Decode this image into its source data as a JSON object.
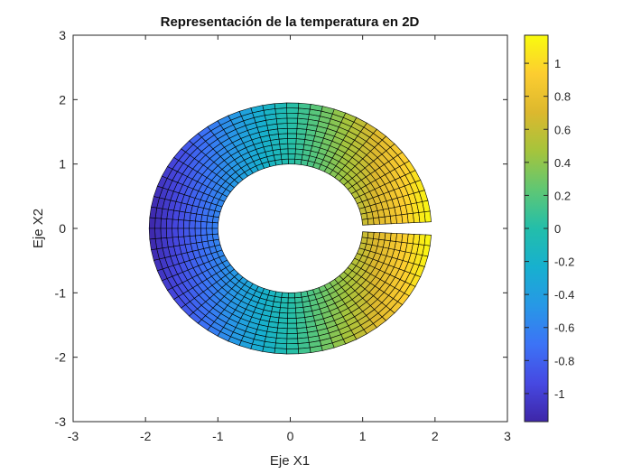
{
  "chart_data": {
    "type": "heatmap",
    "title": "Representación de la temperatura en 2D",
    "xlabel": "Eje X1",
    "ylabel": "Eje X2",
    "xlim": [
      -3,
      3
    ],
    "ylim": [
      -3,
      3
    ],
    "xticks": [
      "-3",
      "-2",
      "-1",
      "0",
      "1",
      "2",
      "3"
    ],
    "yticks": [
      "-3",
      "-2",
      "-1",
      "0",
      "1",
      "2",
      "3"
    ],
    "mesh": {
      "shape": "annulus",
      "inner_radius": 1.0,
      "outer_radius": 1.95,
      "radial_divisions": 12,
      "angular_divisions": 72,
      "angle_start_deg": 3,
      "angle_end_deg": 357,
      "field": "0.6 * x1"
    },
    "colorbar": {
      "colormap": "parula",
      "clim": [
        -1.17,
        1.17
      ],
      "ticks": [
        -1,
        -0.8,
        -0.6,
        -0.4,
        -0.2,
        0,
        0.2,
        0.4,
        0.6,
        0.8,
        1
      ],
      "tick_labels": [
        "-1",
        "-0.8",
        "-0.6",
        "-0.4",
        "-0.2",
        "0",
        "0.2",
        "0.4",
        "0.6",
        "0.8",
        "1"
      ]
    }
  }
}
